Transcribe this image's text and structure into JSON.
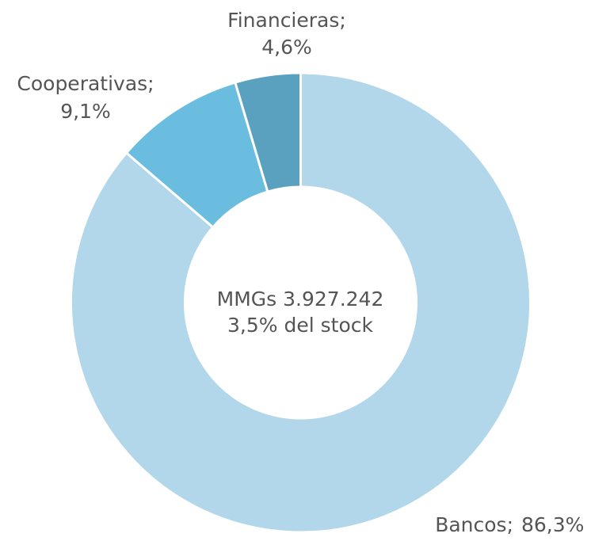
{
  "chart_data": {
    "type": "donut",
    "categories": [
      "Bancos;",
      "Cooperativas;",
      "Financieras;"
    ],
    "values": [
      86.3,
      9.1,
      4.6
    ],
    "value_labels": [
      "86,3%",
      "9,1%",
      "4,6%"
    ],
    "colors": [
      "#b3d7ea",
      "#6bbde0",
      "#5aa0bf"
    ],
    "annotations": [
      "MMGs 3.927.242",
      "3,5% del stock"
    ]
  }
}
